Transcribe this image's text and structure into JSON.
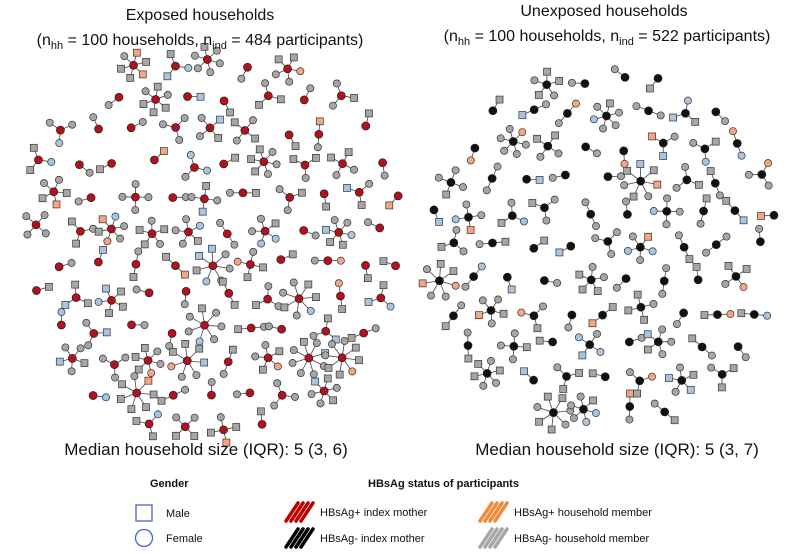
{
  "panels": [
    {
      "title": "Exposed households",
      "subtitle": [
        "(n",
        "hh",
        " = 100 households, n",
        "ind",
        " = 484 participants)"
      ],
      "footer": "Median household size (IQR): 5 (3, 6)"
    },
    {
      "title": "Unexposed households",
      "subtitle": [
        "(n",
        "hh",
        " = 100 households, n",
        "ind",
        " = 522 participants)"
      ],
      "footer": "Median household size (IQR): 5 (3, 7)"
    }
  ],
  "legend": {
    "gender": {
      "title": "Gender",
      "items": [
        "Male",
        "Female"
      ]
    },
    "status": {
      "title": "HBsAg status of participants",
      "items": [
        "HBsAg+ index mother",
        "HBsAg- index mother",
        "HBsAg+ household member",
        "HBsAg- household member"
      ]
    }
  }
}
